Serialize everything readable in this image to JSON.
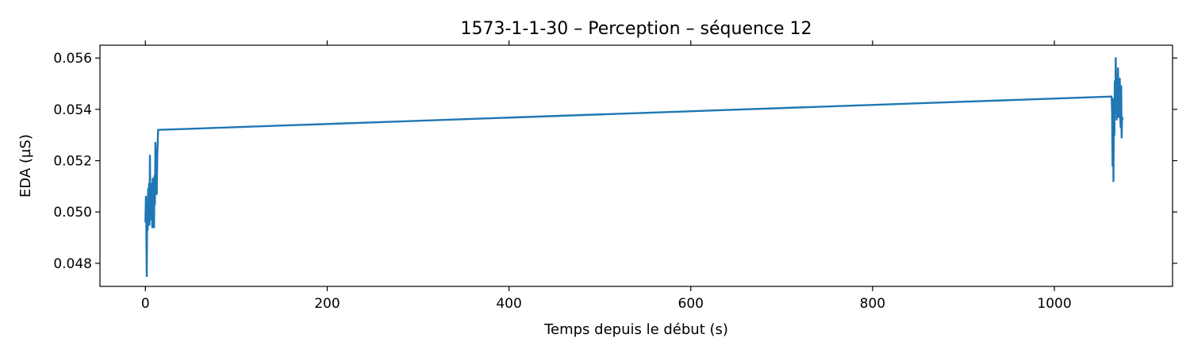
{
  "chart_data": {
    "type": "line",
    "title": "1573-1-1-30 – Perception – séquence 12",
    "xlabel": "Temps depuis le début (s)",
    "ylabel": "EDA (µS)",
    "xlim": [
      -50,
      1130
    ],
    "ylim": [
      0.0471,
      0.0565
    ],
    "xticks": [
      0,
      200,
      400,
      600,
      800,
      1000
    ],
    "xtick_labels": [
      "0",
      "200",
      "400",
      "600",
      "800",
      "1000"
    ],
    "yticks": [
      0.048,
      0.05,
      0.052,
      0.054,
      0.056
    ],
    "ytick_labels": [
      "0.048",
      "0.050",
      "0.052",
      "0.054",
      "0.056"
    ],
    "grid": false,
    "line_color": "#1f77b4",
    "series": [
      {
        "x": [
          0,
          0.5,
          1,
          1.5,
          2,
          2.5,
          3,
          3.5,
          4,
          4.5,
          5,
          5.5,
          6,
          6.5,
          7,
          7.5,
          8,
          8.5,
          9,
          9.5,
          10,
          10.5,
          11,
          11.5,
          12,
          12.5,
          13,
          13.5,
          14,
          14.5,
          1063,
          1063.5,
          1064,
          1064.5,
          1065,
          1065.5,
          1066,
          1066.5,
          1067,
          1067.5,
          1068,
          1068.5,
          1069,
          1069.5,
          1070,
          1070.5,
          1071,
          1071.5,
          1072,
          1072.5,
          1073,
          1073.5,
          1074,
          1074.5,
          1075
        ],
        "y": [
          0.0496,
          0.0506,
          0.0494,
          0.0475,
          0.0505,
          0.0493,
          0.0509,
          0.0497,
          0.0511,
          0.0495,
          0.0522,
          0.0501,
          0.0509,
          0.0497,
          0.0511,
          0.0494,
          0.0513,
          0.0499,
          0.0507,
          0.0494,
          0.0514,
          0.0503,
          0.0527,
          0.0509,
          0.0524,
          0.0507,
          0.0521,
          0.0527,
          0.0532,
          0.0532,
          0.0545,
          0.0539,
          0.0518,
          0.0544,
          0.0512,
          0.0542,
          0.053,
          0.0551,
          0.0541,
          0.056,
          0.0546,
          0.0536,
          0.0552,
          0.0538,
          0.0556,
          0.0537,
          0.055,
          0.0537,
          0.0552,
          0.0536,
          0.0533,
          0.0549,
          0.0529,
          0.0537,
          0.0536
        ]
      }
    ]
  }
}
